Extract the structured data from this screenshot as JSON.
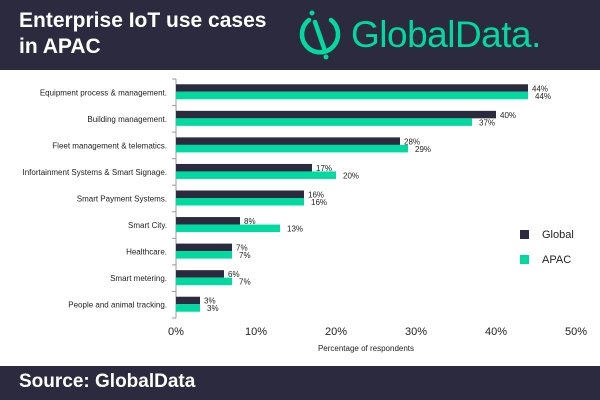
{
  "header": {
    "title": "Enterprise IoT use cases in APAC",
    "logo": "GlobalData."
  },
  "footer": {
    "source": "Source: GlobalData"
  },
  "chart_data": {
    "type": "bar",
    "orientation": "horizontal",
    "categories": [
      "Equipment process & management.",
      "Building management.",
      "Fleet management & telematics.",
      "Infortainment Systems & Smart Signage.",
      "Smart Payment Systems.",
      "Smart City.",
      "Healthcare.",
      "Smart metering.",
      "People and animal tracking."
    ],
    "series": [
      {
        "name": "Global",
        "color": "#2c2a3e",
        "values": [
          44,
          40,
          28,
          17,
          16,
          8,
          7,
          6,
          3
        ]
      },
      {
        "name": "APAC",
        "color": "#00d9a0",
        "values": [
          44,
          37,
          29,
          20,
          16,
          13,
          7,
          7,
          3
        ]
      }
    ],
    "xlabel": "Percentage of respondents",
    "xlim": [
      0,
      50
    ],
    "xticks": [
      "0%",
      "10%",
      "20%",
      "30%",
      "40%",
      "50%"
    ],
    "legend": "right",
    "grid": false
  }
}
